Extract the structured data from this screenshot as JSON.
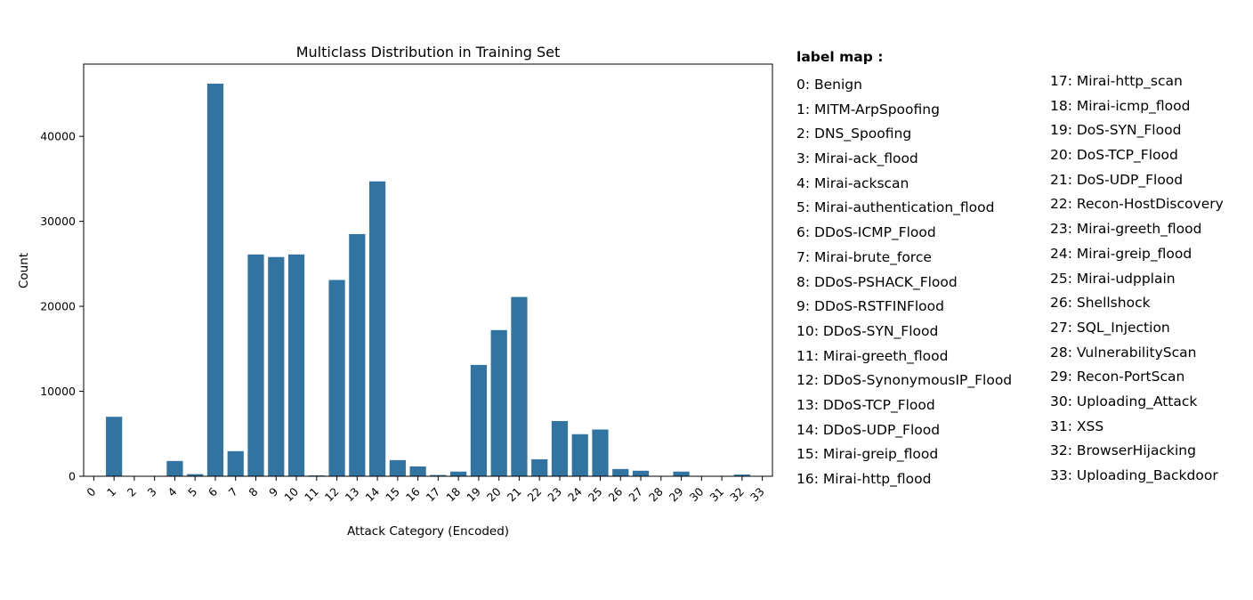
{
  "chart_data": {
    "type": "bar",
    "title": "Multiclass Distribution in Training Set",
    "xlabel": "Attack Category (Encoded)",
    "ylabel": "Count",
    "categories": [
      "0",
      "1",
      "2",
      "3",
      "4",
      "5",
      "6",
      "7",
      "8",
      "9",
      "10",
      "11",
      "12",
      "13",
      "14",
      "15",
      "16",
      "17",
      "18",
      "19",
      "20",
      "21",
      "22",
      "23",
      "24",
      "25",
      "26",
      "27",
      "28",
      "29",
      "30",
      "31",
      "32",
      "33"
    ],
    "values": [
      0,
      7000,
      0,
      0,
      1800,
      250,
      46200,
      2950,
      26100,
      25800,
      26100,
      100,
      23100,
      28500,
      34700,
      1900,
      1150,
      150,
      550,
      13100,
      17200,
      21100,
      2000,
      6500,
      4950,
      5500,
      850,
      650,
      50,
      550,
      0,
      0,
      200,
      0
    ],
    "ylim": [
      0,
      48500
    ],
    "yticks": [
      0,
      10000,
      20000,
      30000,
      40000
    ],
    "color": "#3274a1",
    "grid": false,
    "legend": "none"
  },
  "label_map": {
    "title": "label map :",
    "items": [
      "0: Benign",
      "1: MITM-ArpSpoofing",
      "2: DNS_Spoofing",
      "3: Mirai-ack_flood",
      "4: Mirai-ackscan",
      "5: Mirai-authentication_flood",
      "6: DDoS-ICMP_Flood",
      "7: Mirai-brute_force",
      "8: DDoS-PSHACK_Flood",
      "9: DDoS-RSTFINFlood",
      "10: DDoS-SYN_Flood",
      "11: Mirai-greeth_flood",
      "12: DDoS-SynonymousIP_Flood",
      "13: DDoS-TCP_Flood",
      "14: DDoS-UDP_Flood",
      "15: Mirai-greip_flood",
      "16: Mirai-http_flood",
      "17: Mirai-http_scan",
      "18: Mirai-icmp_flood",
      "19: DoS-SYN_Flood",
      "20: DoS-TCP_Flood",
      "21: DoS-UDP_Flood",
      "22: Recon-HostDiscovery",
      "23: Mirai-greeth_flood",
      "24: Mirai-greip_flood",
      "25: Mirai-udpplain",
      "26: Shellshock",
      "27: SQL_Injection",
      "28: VulnerabilityScan",
      "29: Recon-PortScan",
      "30: Uploading_Attack",
      "31: XSS",
      "32: BrowserHijacking",
      "33: Uploading_Backdoor"
    ]
  }
}
